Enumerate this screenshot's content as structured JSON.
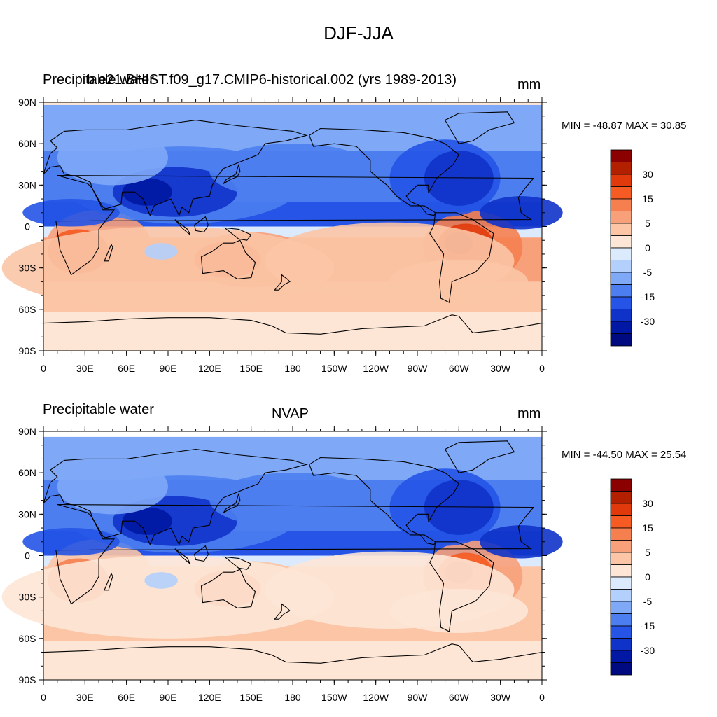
{
  "title": "DJF-JJA",
  "panels": [
    {
      "left_label": "Precipitable water",
      "center_label": "b.e21.BHIST.f09_g17.CMIP6-historical.002 (yrs 1989-2013)",
      "units": "mm",
      "stats": "MIN = -48.87 MAX =  30.85"
    },
    {
      "left_label": "Precipitable water",
      "center_label": "NVAP",
      "units": "mm",
      "stats": "MIN = -44.50 MAX =  25.54"
    }
  ],
  "lat_ticks": [
    "90N",
    "60N",
    "30N",
    "0",
    "30S",
    "60S",
    "90S"
  ],
  "lon_ticks": [
    "0",
    "30E",
    "60E",
    "90E",
    "120E",
    "150E",
    "180",
    "150W",
    "120W",
    "90W",
    "60W",
    "30W",
    "0"
  ],
  "colorbar": {
    "labels": [
      "30",
      "15",
      "5",
      "0",
      "-5",
      "-15",
      "-30"
    ],
    "colors": [
      "#8b0000",
      "#b22000",
      "#e03a0c",
      "#f55b22",
      "#f57f4f",
      "#f7a07a",
      "#fbc5a6",
      "#fde6d6",
      "#dbeafc",
      "#b3cffc",
      "#7fa9f7",
      "#4d7ef0",
      "#2554e6",
      "#0f33c9",
      "#0018a3",
      "#000a80"
    ]
  }
}
